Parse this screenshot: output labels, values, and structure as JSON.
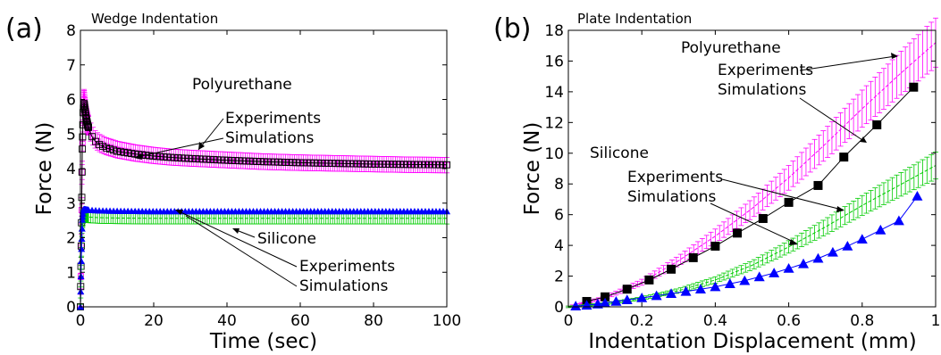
{
  "chart_data": [
    {
      "type": "line",
      "panel": "(a)",
      "title": "Wedge Indentation",
      "xlabel": "Time (sec)",
      "ylabel": "Force (N)",
      "xlim": [
        0,
        100
      ],
      "ylim": [
        0,
        8
      ],
      "xticks": [
        "0",
        "20",
        "40",
        "60",
        "80",
        "100"
      ],
      "yticks": [
        "0",
        "1",
        "2",
        "3",
        "4",
        "5",
        "6",
        "7",
        "8"
      ],
      "grid": false,
      "series": [
        {
          "name": "Polyurethane Experiments",
          "color": "#ff00ff",
          "marker": "square-errorbar",
          "x": [
            0,
            0.25,
            0.5,
            0.75,
            1,
            1.5,
            2,
            3,
            4,
            5,
            7,
            10,
            15,
            20,
            25,
            30,
            40,
            50,
            60,
            70,
            80,
            90,
            100
          ],
          "y": [
            0,
            2.0,
            4.5,
            5.8,
            6.0,
            5.55,
            5.3,
            5.0,
            4.85,
            4.75,
            4.65,
            4.55,
            4.45,
            4.38,
            4.33,
            4.3,
            4.25,
            4.2,
            4.17,
            4.15,
            4.13,
            4.11,
            4.1
          ]
        },
        {
          "name": "Polyurethane Simulations",
          "color": "#000000",
          "marker": "square",
          "x": [
            0,
            0.25,
            0.5,
            0.75,
            1,
            1.5,
            2,
            3,
            4,
            5,
            7,
            10,
            15,
            20,
            25,
            30,
            40,
            50,
            60,
            70,
            80,
            90,
            100
          ],
          "y": [
            0,
            2.0,
            4.5,
            5.7,
            5.9,
            5.5,
            5.25,
            4.95,
            4.8,
            4.7,
            4.6,
            4.5,
            4.42,
            4.36,
            4.32,
            4.29,
            4.24,
            4.2,
            4.17,
            4.15,
            4.13,
            4.12,
            4.11
          ]
        },
        {
          "name": "Silicone Experiments",
          "color": "#00cc00",
          "marker": "errorbar",
          "x": [
            0,
            0.25,
            0.5,
            0.75,
            1,
            2,
            5,
            10,
            20,
            30,
            40,
            50,
            60,
            70,
            80,
            90,
            100
          ],
          "y": [
            0,
            1.5,
            2.4,
            2.6,
            2.62,
            2.6,
            2.58,
            2.57,
            2.56,
            2.56,
            2.56,
            2.56,
            2.56,
            2.56,
            2.56,
            2.56,
            2.56
          ]
        },
        {
          "name": "Silicone Simulations",
          "color": "#0000ff",
          "marker": "triangle",
          "x": [
            0,
            0.25,
            0.5,
            0.75,
            1,
            2,
            5,
            10,
            20,
            30,
            40,
            50,
            60,
            70,
            80,
            90,
            100
          ],
          "y": [
            0,
            1.5,
            2.5,
            2.8,
            2.82,
            2.8,
            2.78,
            2.77,
            2.76,
            2.76,
            2.76,
            2.76,
            2.76,
            2.76,
            2.76,
            2.76,
            2.76
          ]
        }
      ],
      "annotations": [
        "Polyurethane",
        "Experiments",
        "Simulations",
        "Silicone",
        "Experiments",
        "Simulations"
      ]
    },
    {
      "type": "line",
      "panel": "(b)",
      "title": "Plate Indentation",
      "xlabel": "Indentation Displacement (mm)",
      "ylabel": "Force (N)",
      "xlim": [
        0,
        1
      ],
      "ylim": [
        0,
        18
      ],
      "xticks": [
        "0",
        "0.2",
        "0.4",
        "0.6",
        "0.8",
        "1"
      ],
      "yticks": [
        "0",
        "2",
        "4",
        "6",
        "8",
        "10",
        "12",
        "14",
        "16",
        "18"
      ],
      "grid": false,
      "series": [
        {
          "name": "Polyurethane Experiments",
          "color": "#ff00ff",
          "marker": "errorbar",
          "x": [
            0,
            0.1,
            0.2,
            0.3,
            0.4,
            0.5,
            0.6,
            0.7,
            0.8,
            0.9,
            1.0
          ],
          "y": [
            0,
            0.6,
            1.6,
            3.0,
            4.6,
            6.4,
            8.4,
            10.6,
            12.9,
            15.1,
            17.2
          ]
        },
        {
          "name": "Polyurethane Simulations",
          "color": "#000000",
          "marker": "square",
          "x": [
            0.05,
            0.1,
            0.16,
            0.22,
            0.28,
            0.34,
            0.4,
            0.46,
            0.53,
            0.6,
            0.68,
            0.75,
            0.84,
            0.94
          ],
          "y": [
            0.35,
            0.65,
            1.15,
            1.75,
            2.45,
            3.2,
            3.95,
            4.8,
            5.75,
            6.8,
            7.9,
            9.75,
            11.85,
            14.3
          ]
        },
        {
          "name": "Silicone Experiments",
          "color": "#00cc00",
          "marker": "errorbar",
          "x": [
            0,
            0.1,
            0.2,
            0.3,
            0.4,
            0.5,
            0.6,
            0.7,
            0.8,
            0.9,
            1.0
          ],
          "y": [
            0,
            0.2,
            0.55,
            1.05,
            1.75,
            2.7,
            3.9,
            5.2,
            6.6,
            7.9,
            9.2
          ]
        },
        {
          "name": "Silicone Simulations",
          "color": "#0000ff",
          "marker": "triangle",
          "x": [
            0.02,
            0.05,
            0.08,
            0.1,
            0.13,
            0.16,
            0.2,
            0.24,
            0.28,
            0.32,
            0.36,
            0.4,
            0.44,
            0.48,
            0.52,
            0.56,
            0.6,
            0.64,
            0.68,
            0.72,
            0.76,
            0.8,
            0.85,
            0.9,
            0.95
          ],
          "y": [
            0.05,
            0.1,
            0.18,
            0.25,
            0.35,
            0.45,
            0.58,
            0.72,
            0.86,
            1.0,
            1.15,
            1.3,
            1.5,
            1.7,
            1.95,
            2.2,
            2.5,
            2.8,
            3.15,
            3.55,
            3.95,
            4.4,
            5.0,
            5.6,
            7.2
          ]
        }
      ],
      "annotations": [
        "Polyurethane",
        "Experiments",
        "Simulations",
        "Silicone",
        "Experiments",
        "Simulations"
      ]
    }
  ]
}
